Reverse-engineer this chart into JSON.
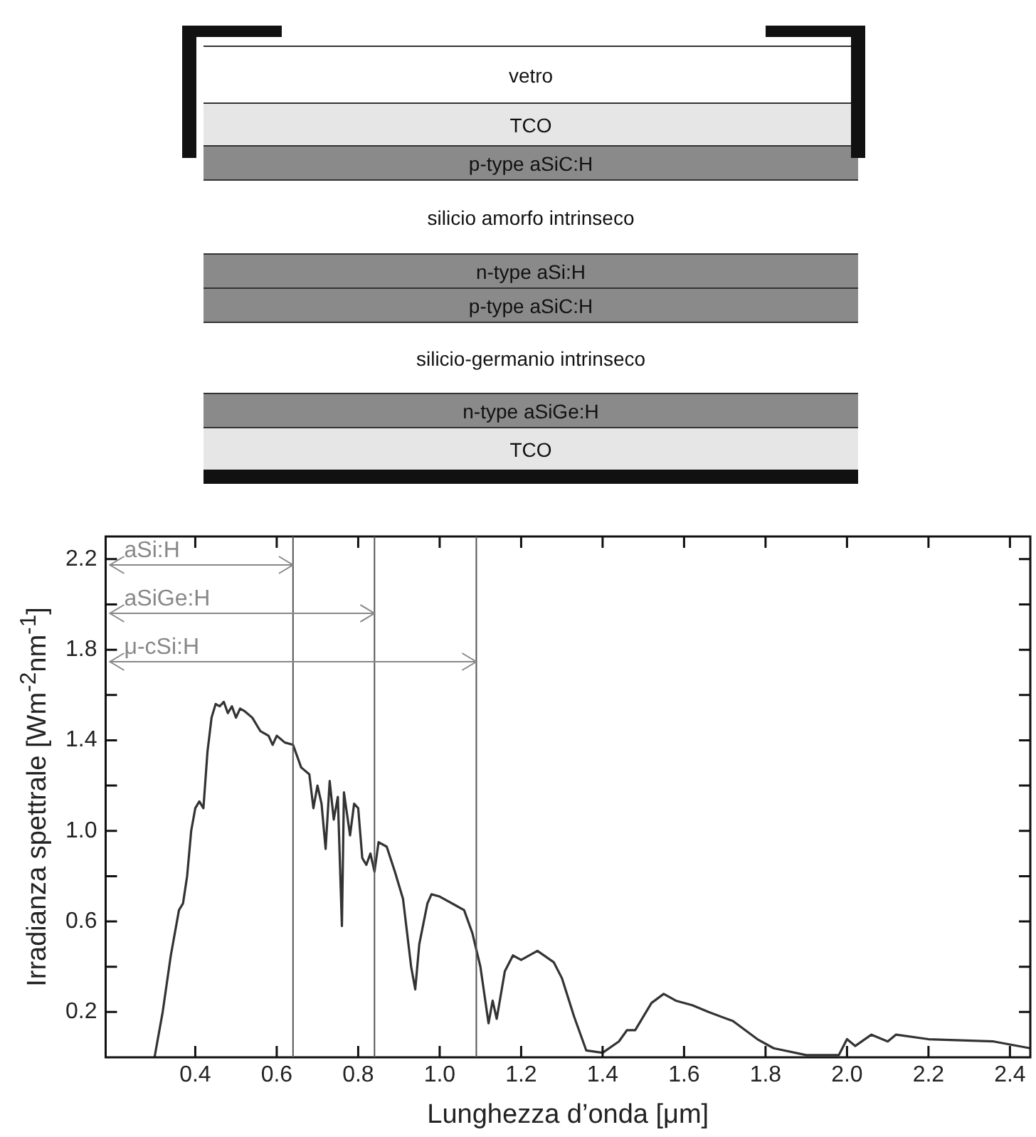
{
  "chart_data": {
    "type": "line",
    "xlabel": "Lunghezza d’onda [μm]",
    "ylabel": "Irradianza spettrale [Wm$^{-2}$nm$^{-1}$]",
    "annotations": [
      "vetro",
      "TCO",
      "p-type aSiC:H",
      "silicio amorfo intrinseco",
      "n-type aSi:H",
      "p-type aSiC:H",
      "silicio-germanio intrinseco",
      "n-type aSiGe:H",
      "TCO"
    ],
    "series": [
      {
        "color": "#333333",
        "x": [
          0.3,
          0.32,
          0.34,
          0.36,
          0.37,
          0.38,
          0.39,
          0.4,
          0.41,
          0.42,
          0.43,
          0.44,
          0.45,
          0.46,
          0.47,
          0.48,
          0.49,
          0.5,
          0.51,
          0.52,
          0.54,
          0.56,
          0.58,
          0.59,
          0.6,
          0.62,
          0.64,
          0.66,
          0.68,
          0.69,
          0.7,
          0.71,
          0.72,
          0.73,
          0.74,
          0.75,
          0.76,
          0.765,
          0.78,
          0.79,
          0.8,
          0.81,
          0.82,
          0.83,
          0.84,
          0.85,
          0.87,
          0.89,
          0.91,
          0.93,
          0.94,
          0.95,
          0.97,
          0.98,
          1.0,
          1.04,
          1.06,
          1.08,
          1.1,
          1.12,
          1.13,
          1.14,
          1.16,
          1.18,
          1.2,
          1.24,
          1.28,
          1.3,
          1.33,
          1.36,
          1.4,
          1.44,
          1.46,
          1.48,
          1.52,
          1.55,
          1.58,
          1.62,
          1.66,
          1.72,
          1.78,
          1.82,
          1.9,
          1.98,
          2.0,
          2.02,
          2.06,
          2.1,
          2.12,
          2.2,
          2.36,
          2.45
        ],
        "values": [
          0,
          0.2,
          0.45,
          0.65,
          0.68,
          0.8,
          1.0,
          1.1,
          1.13,
          1.1,
          1.35,
          1.5,
          1.56,
          1.55,
          1.57,
          1.52,
          1.55,
          1.5,
          1.54,
          1.53,
          1.5,
          1.44,
          1.42,
          1.38,
          1.42,
          1.39,
          1.38,
          1.28,
          1.25,
          1.1,
          1.2,
          1.12,
          0.92,
          1.22,
          1.05,
          1.15,
          0.58,
          1.17,
          0.98,
          1.12,
          1.1,
          0.88,
          0.85,
          0.9,
          0.82,
          0.95,
          0.93,
          0.82,
          0.7,
          0.4,
          0.3,
          0.5,
          0.68,
          0.72,
          0.71,
          0.67,
          0.65,
          0.55,
          0.4,
          0.15,
          0.25,
          0.17,
          0.38,
          0.45,
          0.43,
          0.47,
          0.42,
          0.35,
          0.18,
          0.03,
          0.02,
          0.07,
          0.12,
          0.12,
          0.24,
          0.28,
          0.25,
          0.23,
          0.2,
          0.16,
          0.08,
          0.04,
          0.01,
          0.01,
          0.08,
          0.05,
          0.1,
          0.07,
          0.1,
          0.08,
          0.07,
          0.04
        ]
      }
    ],
    "xlim": [
      0.18,
      2.45
    ],
    "xticks": [
      0.4,
      0.6,
      0.8,
      {
        "value": 1,
        "label": "1.0"
      },
      1.2,
      1.4,
      1.6,
      1.8,
      {
        "value": 2,
        "label": "2.0"
      },
      2.2,
      2.4
    ],
    "ylim": [
      0,
      2.3
    ],
    "yticks": [
      0.2,
      {
        "value": 0.4,
        "label": null
      },
      0.6,
      {
        "value": 0.8,
        "label": null
      },
      {
        "value": 1,
        "label": "1.0"
      },
      {
        "value": 1.2,
        "label": null
      },
      1.4,
      {
        "value": 1.6,
        "label": null
      },
      1.8,
      {
        "value": 2,
        "label": null
      },
      2.2
    ],
    "ref_lines": [
      {
        "axis": "x",
        "value": 0.64,
        "label": "aSi:H",
        "color": "#555555"
      },
      {
        "axis": "x",
        "value": 0.84,
        "label": "aSiGe:H",
        "color": "#555555"
      },
      {
        "axis": "x",
        "value": 1.09,
        "label": "μ-cSi:H",
        "color": "#555555"
      }
    ],
    "grid": false,
    "legend": false,
    "marker": "none",
    "line_style": "solid"
  }
}
